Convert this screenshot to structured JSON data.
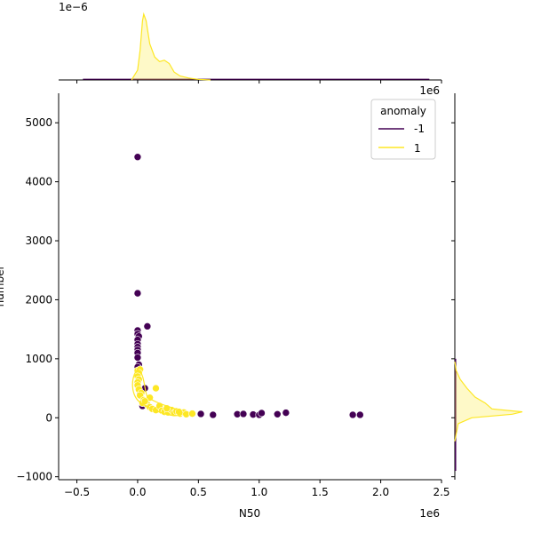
{
  "chart_data": {
    "type": "scatter",
    "title": "",
    "xlabel": "N50",
    "ylabel": "number",
    "x_multiplier_label": "1e6",
    "top_marginal_multiplier_label": "1e−6",
    "right_marginal_multiplier_label": "1e6",
    "xlim": [
      -0.65,
      2.5
    ],
    "ylim": [
      -1050,
      5500
    ],
    "x_ticks": [
      {
        "v": -0.5,
        "label": "−0.5"
      },
      {
        "v": 0.0,
        "label": "0.0"
      },
      {
        "v": 0.5,
        "label": "0.5"
      },
      {
        "v": 1.0,
        "label": "1.0"
      },
      {
        "v": 1.5,
        "label": "1.5"
      },
      {
        "v": 2.0,
        "label": "2.0"
      },
      {
        "v": 2.5,
        "label": "2.5"
      }
    ],
    "y_ticks": [
      {
        "v": -1000,
        "label": "−1000"
      },
      {
        "v": 0,
        "label": "0"
      },
      {
        "v": 1000,
        "label": "1000"
      },
      {
        "v": 2000,
        "label": "2000"
      },
      {
        "v": 3000,
        "label": "3000"
      },
      {
        "v": 4000,
        "label": "4000"
      },
      {
        "v": 5000,
        "label": "5000"
      }
    ],
    "grid": false,
    "legend": {
      "title": "anomaly",
      "placement": "top-right"
    },
    "series": [
      {
        "name": "-1",
        "color": "#440154",
        "points": [
          [
            0.0,
            4420
          ],
          [
            0.0,
            2110
          ],
          [
            0.08,
            1550
          ],
          [
            0.0,
            1480
          ],
          [
            0.0,
            1420
          ],
          [
            0.01,
            1380
          ],
          [
            0.0,
            1320
          ],
          [
            0.0,
            1250
          ],
          [
            0.0,
            1200
          ],
          [
            0.0,
            1150
          ],
          [
            0.0,
            1100
          ],
          [
            0.0,
            1020
          ],
          [
            0.01,
            900
          ],
          [
            0.0,
            860
          ],
          [
            0.0,
            800
          ],
          [
            0.06,
            500
          ],
          [
            0.02,
            400
          ],
          [
            0.04,
            200
          ],
          [
            0.52,
            65
          ],
          [
            0.62,
            50
          ],
          [
            0.82,
            60
          ],
          [
            0.87,
            65
          ],
          [
            0.95,
            55
          ],
          [
            1.0,
            50
          ],
          [
            1.02,
            80
          ],
          [
            1.15,
            60
          ],
          [
            1.22,
            85
          ],
          [
            1.77,
            50
          ],
          [
            1.83,
            50
          ]
        ]
      },
      {
        "name": "1",
        "color": "#fde725",
        "points": [
          [
            0.0,
            800
          ],
          [
            0.02,
            820
          ],
          [
            0.01,
            760
          ],
          [
            0.0,
            700
          ],
          [
            0.01,
            650
          ],
          [
            0.0,
            600
          ],
          [
            0.0,
            550
          ],
          [
            0.01,
            480
          ],
          [
            0.03,
            420
          ],
          [
            0.02,
            380
          ],
          [
            0.05,
            300
          ],
          [
            0.04,
            250
          ],
          [
            0.08,
            220
          ],
          [
            0.1,
            180
          ],
          [
            0.12,
            150
          ],
          [
            0.15,
            130
          ],
          [
            0.15,
            500
          ],
          [
            0.18,
            200
          ],
          [
            0.2,
            120
          ],
          [
            0.22,
            100
          ],
          [
            0.25,
            90
          ],
          [
            0.28,
            130
          ],
          [
            0.3,
            80
          ],
          [
            0.32,
            110
          ],
          [
            0.35,
            70
          ],
          [
            0.38,
            90
          ],
          [
            0.4,
            60
          ],
          [
            0.45,
            70
          ],
          [
            0.1,
            340
          ],
          [
            0.06,
            280
          ],
          [
            0.24,
            160
          ],
          [
            0.34,
            100
          ]
        ]
      }
    ],
    "top_marginal": {
      "series": "1",
      "x": [
        -0.05,
        0.0,
        0.02,
        0.04,
        0.05,
        0.07,
        0.1,
        0.14,
        0.18,
        0.22,
        0.26,
        0.3,
        0.35,
        0.42,
        0.5,
        0.6
      ],
      "density": [
        0.0,
        0.15,
        0.45,
        0.9,
        1.0,
        0.9,
        0.55,
        0.35,
        0.28,
        0.3,
        0.25,
        0.12,
        0.06,
        0.03,
        0.01,
        0.0
      ]
    },
    "top_marginal_flat_series": "-1",
    "right_marginal": {
      "series": "1",
      "y": [
        -400,
        -100,
        0,
        60,
        100,
        150,
        250,
        350,
        500,
        650,
        800,
        950
      ],
      "density": [
        0.0,
        0.05,
        0.25,
        0.85,
        1.0,
        0.55,
        0.45,
        0.3,
        0.18,
        0.08,
        0.02,
        0.0
      ]
    },
    "right_marginal_flat_series": "-1"
  }
}
